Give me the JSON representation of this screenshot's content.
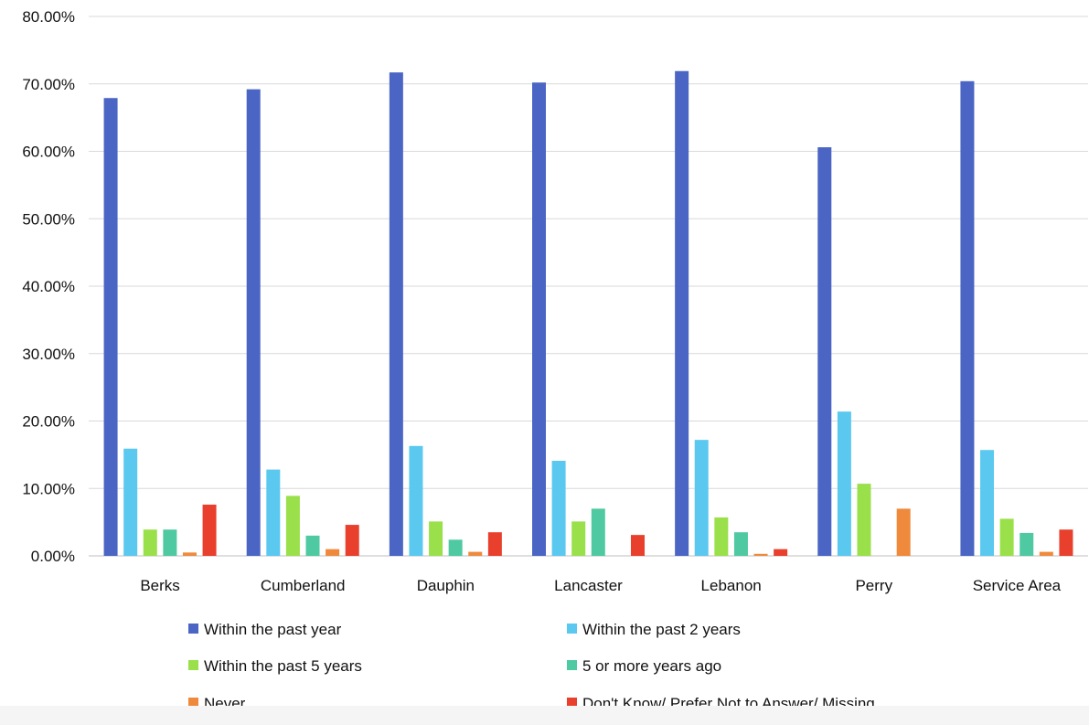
{
  "chart_data": {
    "type": "bar",
    "title": "",
    "xlabel": "",
    "ylabel": "",
    "ylim": [
      0,
      80
    ],
    "y_ticks": [
      "0.00%",
      "10.00%",
      "20.00%",
      "30.00%",
      "40.00%",
      "50.00%",
      "60.00%",
      "70.00%",
      "80.00%"
    ],
    "grid": true,
    "legend_position": "bottom",
    "categories": [
      "Berks",
      "Cumberland",
      "Dauphin",
      "Lancaster",
      "Lebanon",
      "Perry",
      "Service Area"
    ],
    "series": [
      {
        "name": "Within the past year",
        "color": "#4a65c4",
        "values": [
          67.9,
          69.2,
          71.7,
          70.2,
          71.9,
          60.6,
          70.4
        ]
      },
      {
        "name": "Within the past 2 years",
        "color": "#5bc8f0",
        "values": [
          15.9,
          12.8,
          16.3,
          14.1,
          17.2,
          21.4,
          15.7
        ]
      },
      {
        "name": "Within the past 5 years",
        "color": "#9ae04a",
        "values": [
          3.9,
          8.9,
          5.1,
          5.1,
          5.7,
          10.7,
          5.5
        ]
      },
      {
        "name": "5 or more years ago",
        "color": "#4fc9a1",
        "values": [
          3.9,
          3.0,
          2.4,
          7.0,
          3.5,
          0,
          3.4
        ]
      },
      {
        "name": "Never",
        "color": "#ef8a3c",
        "values": [
          0.5,
          1.0,
          0.6,
          0,
          0.3,
          7.0,
          0.6
        ]
      },
      {
        "name": "Don't Know/ Prefer Not to Answer/ Missing",
        "color": "#e8402d",
        "values": [
          7.6,
          4.6,
          3.5,
          3.1,
          1.0,
          0,
          3.9
        ]
      }
    ]
  }
}
